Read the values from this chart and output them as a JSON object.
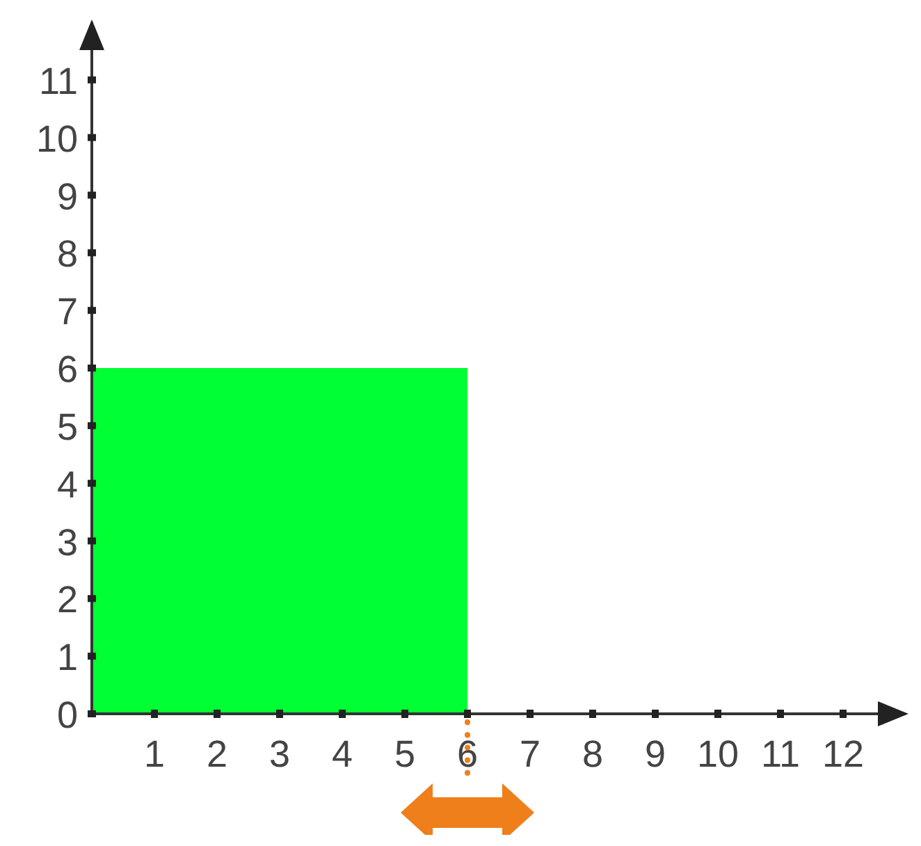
{
  "chart_data": {
    "type": "area",
    "x": [
      0,
      6
    ],
    "values": [
      6,
      6
    ],
    "color": "#00ff33",
    "xlim": [
      0,
      13
    ],
    "ylim": [
      0,
      12
    ],
    "xticks": [
      1,
      2,
      3,
      4,
      5,
      6,
      7,
      8,
      9,
      10,
      11,
      12
    ],
    "yticks": [
      0,
      1,
      2,
      3,
      4,
      5,
      6,
      7,
      8,
      9,
      10,
      11
    ]
  }
}
